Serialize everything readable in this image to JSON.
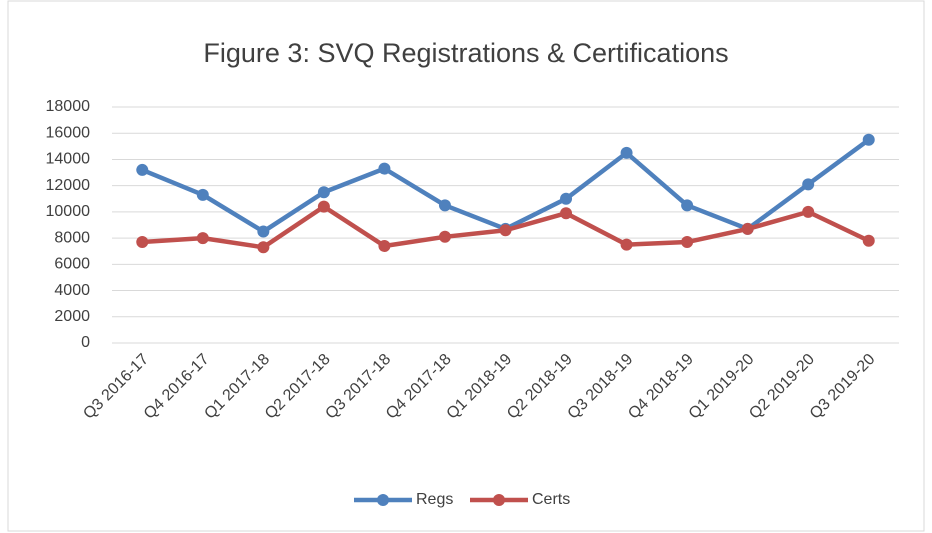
{
  "chart_data": {
    "type": "line",
    "title": "Figure 3: SVQ Registrations & Certifications",
    "categories": [
      "Q3 2016-17",
      "Q4 2016-17",
      "Q1 2017-18",
      "Q2 2017-18",
      "Q3 2017-18",
      "Q4 2017-18",
      "Q1 2018-19",
      "Q2 2018-19",
      "Q3 2018-19",
      "Q4 2018-19",
      "Q1 2019-20",
      "Q2 2019-20",
      "Q3 2019-20"
    ],
    "series": [
      {
        "name": "Regs",
        "color": "#4f81bd",
        "values": [
          13200,
          11300,
          8500,
          11500,
          13300,
          10500,
          8700,
          11000,
          14500,
          10500,
          8700,
          12100,
          15500
        ]
      },
      {
        "name": "Certs",
        "color": "#c0504d",
        "values": [
          7700,
          8000,
          7300,
          10400,
          7400,
          8100,
          8600,
          9900,
          7500,
          7700,
          8700,
          10000,
          7800
        ]
      }
    ],
    "ylim": [
      0,
      18000
    ],
    "yticks": [
      0,
      2000,
      4000,
      6000,
      8000,
      10000,
      12000,
      14000,
      16000,
      18000
    ],
    "grid": true,
    "legend": "bottom"
  }
}
